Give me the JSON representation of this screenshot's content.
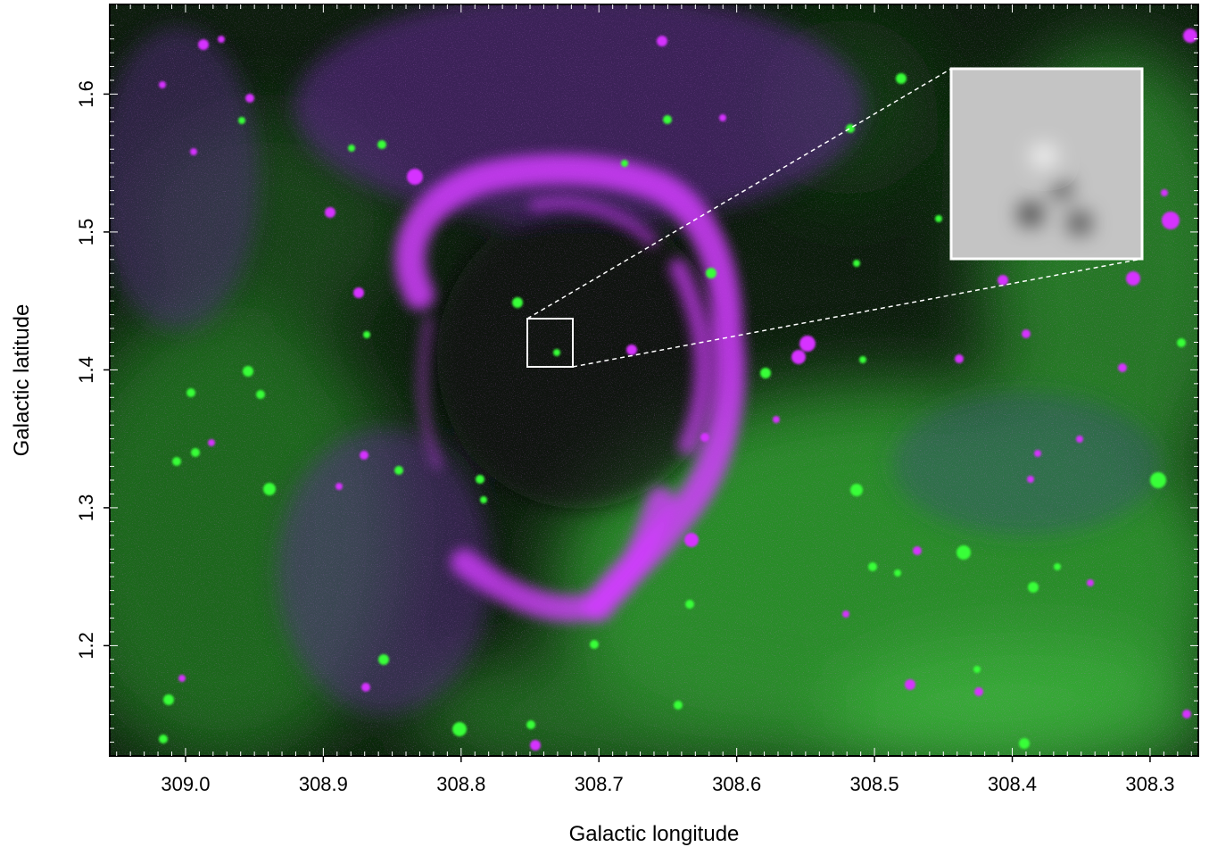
{
  "figure": {
    "xlabel": "Galactic longitude",
    "ylabel": "Galactic latitude",
    "x_ticks": [
      "309.0",
      "308.9",
      "308.8",
      "308.7",
      "308.6",
      "308.5",
      "308.4",
      "308.3"
    ],
    "y_ticks": [
      "1.2",
      "1.3",
      "1.4",
      "1.5",
      "1.6"
    ],
    "x_range": [
      309.055,
      308.265
    ],
    "y_range": [
      1.12,
      1.665
    ],
    "colors": {
      "radio": "#d633ff",
      "infrared": "#2ee62e",
      "background": "#0a1a0a",
      "inset_frame": "#ffffff"
    },
    "inset": {
      "region_l": [
        308.752,
        308.72
      ],
      "region_b": [
        1.401,
        1.436
      ]
    }
  }
}
